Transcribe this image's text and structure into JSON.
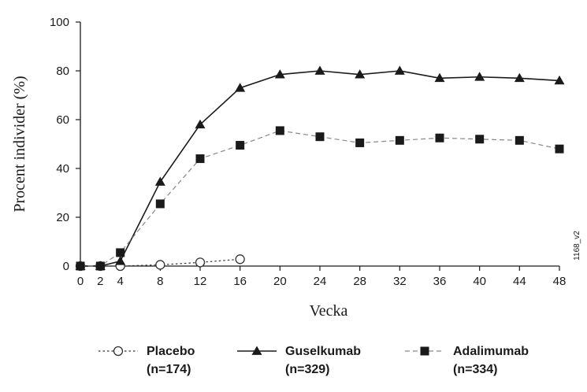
{
  "chart_data": {
    "type": "line",
    "xlabel": "Vecka",
    "ylabel": "Procent individer (%)",
    "side_note": "1168_v2",
    "x_ticks": [
      0,
      2,
      4,
      8,
      12,
      16,
      20,
      24,
      28,
      32,
      36,
      40,
      44,
      48
    ],
    "y_ticks": [
      0,
      20,
      40,
      60,
      80,
      100
    ],
    "xlim": [
      0,
      48
    ],
    "ylim": [
      0,
      100
    ],
    "grid": false,
    "legend_position": "bottom",
    "series": [
      {
        "key": "placebo",
        "name": "Placebo",
        "n_label": "(n=174)",
        "marker": "circle-open",
        "line_style": "dotted",
        "color": "#333333",
        "x": [
          0,
          2,
          4,
          8,
          12,
          16
        ],
        "values": [
          0,
          0,
          0,
          0.5,
          1.5,
          2.8
        ]
      },
      {
        "key": "guselkumab",
        "name": "Guselkumab",
        "n_label": "(n=329)",
        "marker": "triangle-filled",
        "line_style": "solid",
        "color": "#1a1a1a",
        "x": [
          0,
          2,
          4,
          8,
          12,
          16,
          20,
          24,
          28,
          32,
          36,
          40,
          44,
          48
        ],
        "values": [
          0,
          0,
          2,
          34.5,
          58,
          73,
          78.5,
          80,
          78.5,
          80,
          77,
          77.5,
          77,
          76
        ]
      },
      {
        "key": "adalimumab",
        "name": "Adalimumab",
        "n_label": "(n=334)",
        "marker": "square-filled",
        "line_style": "dashed",
        "color": "#1a1a1a",
        "line_color": "#888888",
        "x": [
          0,
          2,
          4,
          8,
          12,
          16,
          20,
          24,
          28,
          32,
          36,
          40,
          44,
          48
        ],
        "values": [
          0,
          0,
          5.5,
          25.5,
          44,
          49.5,
          55.5,
          53,
          50.5,
          51.5,
          52.5,
          52,
          51.5,
          48
        ]
      }
    ]
  }
}
